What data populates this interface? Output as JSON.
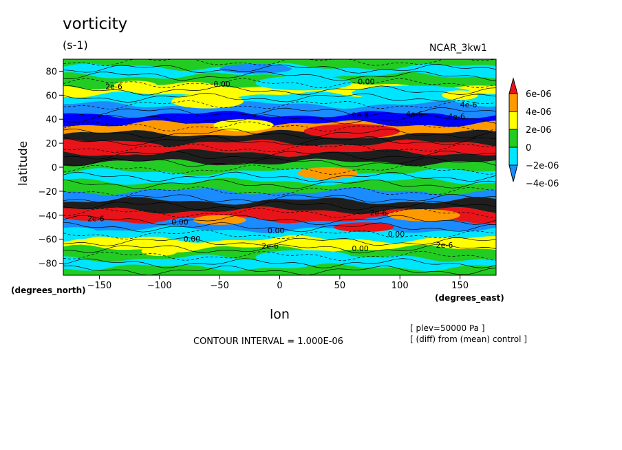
{
  "chart_data": {
    "type": "heatmap",
    "title": "vorticity",
    "units": "(s-1)",
    "dataset": "NCAR_3kw1",
    "xlabel": "lon",
    "ylabel": "latitude",
    "x_units": "(degrees_east)",
    "y_units": "(degrees_north)",
    "xlim": [
      -180,
      180
    ],
    "ylim": [
      -90,
      90
    ],
    "x_ticks": [
      -150,
      -100,
      -50,
      0,
      50,
      100,
      150
    ],
    "y_ticks": [
      80,
      60,
      40,
      20,
      0,
      -20,
      -40,
      -60,
      -80
    ],
    "contour_interval_text": "CONTOUR INTERVAL = 1.000E-06",
    "notes": [
      "[ plev=50000 Pa ]",
      "[ (diff) from (mean) control ]"
    ],
    "colorbar": {
      "levels": [
        -4e-06,
        -2e-06,
        0,
        2e-06,
        4e-06,
        6e-06
      ],
      "labels": [
        "6e-06",
        "4e-06",
        "2e-06",
        "0",
        "-2e-06",
        "-4e-06"
      ],
      "colors": [
        "#e8141a",
        "#ff9900",
        "#ffff00",
        "#22cc22",
        "#00e5ff",
        "#1a8cff",
        "#0000ff",
        "#1e1e1e"
      ]
    },
    "contour_labels": [
      "2e-6",
      "0.00",
      "0.00",
      "4e-6",
      "4e-6",
      "2e-6",
      "2e-6",
      "0.00",
      "0.00",
      "0.00",
      "2e-6",
      "2e-6",
      "0.00",
      "0.00",
      "4e-6",
      "2e-6"
    ],
    "bands": [
      {
        "lat": 87,
        "value": 0
      },
      {
        "lat": 80,
        "value": -2e-06
      },
      {
        "lat": 72,
        "value": 0
      },
      {
        "lat": 64,
        "value": 2e-06
      },
      {
        "lat": 56,
        "value": -2e-06
      },
      {
        "lat": 48,
        "value": -4e-06
      },
      {
        "lat": 40,
        "value": -6e-06
      },
      {
        "lat": 32,
        "value": 4e-06
      },
      {
        "lat": 24,
        "value": -8e-06
      },
      {
        "lat": 16,
        "value": 6e-06
      },
      {
        "lat": 8,
        "value": -8e-06
      },
      {
        "lat": 0,
        "value": 0
      },
      {
        "lat": -8,
        "value": -2e-06
      },
      {
        "lat": -16,
        "value": 0
      },
      {
        "lat": -24,
        "value": -4e-06
      },
      {
        "lat": -32,
        "value": -8e-06
      },
      {
        "lat": -40,
        "value": 6e-06
      },
      {
        "lat": -48,
        "value": -4e-06
      },
      {
        "lat": -56,
        "value": -2e-06
      },
      {
        "lat": -64,
        "value": 2e-06
      },
      {
        "lat": -72,
        "value": 0
      },
      {
        "lat": -80,
        "value": -2e-06
      },
      {
        "lat": -87,
        "value": 0
      }
    ]
  }
}
